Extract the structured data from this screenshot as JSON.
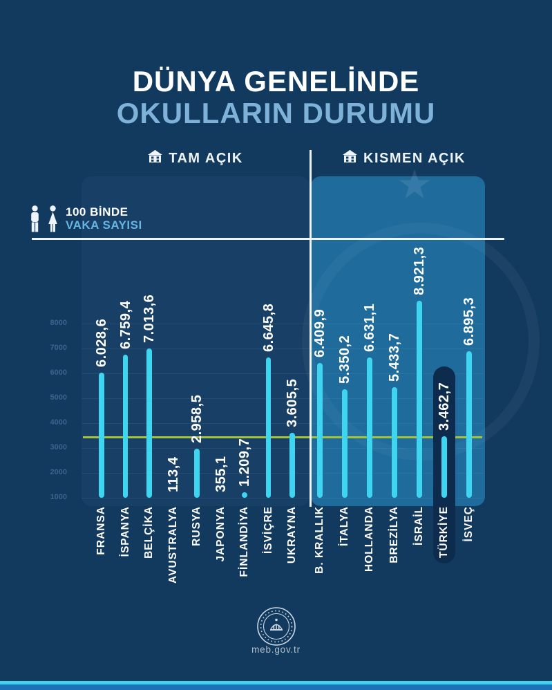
{
  "page": {
    "title_line1": "DÜNYA GENELİNDE",
    "title_line2": "OKULLARIN DURUMU",
    "legend": {
      "line1": "100 BİNDE",
      "line2": "VAKA SAYISI"
    },
    "footer_site": "meb.gov.tr"
  },
  "colors": {
    "background": "#123a5f",
    "title_accent": "#7fb2d9",
    "bar": "#3ed5f1",
    "reference_line": "#a6c43a",
    "highlight_pill": "#0d2b4d",
    "panel_right": "#1f6f9f",
    "white_line": "#eef4f9",
    "bottom_strip_cyan": "#3fd3ee",
    "bottom_strip_blue": "#1d71b6"
  },
  "chart_data": {
    "type": "bar",
    "title": "DÜNYA GENELİNDE OKULLARIN DURUMU",
    "ylabel": "100 BİNDE VAKA SAYISI",
    "ylim": [
      1000,
      9200
    ],
    "yticks": [
      "1000",
      "2000",
      "3000",
      "4000",
      "5000",
      "6000",
      "7000",
      "8000"
    ],
    "grid": true,
    "legend_position": "top-left",
    "reference_line": {
      "value": 3462.7,
      "color": "#a6c43a"
    },
    "groups": [
      {
        "label": "TAM AÇIK",
        "bars": [
          {
            "country": "FRANSA",
            "value": 6028.6,
            "display": "6.028,6"
          },
          {
            "country": "İSPANYA",
            "value": 6759.4,
            "display": "6.759,4"
          },
          {
            "country": "BELÇİKA",
            "value": 7013.6,
            "display": "7.013,6"
          },
          {
            "country": "AVUSTRALYA",
            "value": 113.4,
            "display": "113,4"
          },
          {
            "country": "RUSYA",
            "value": 2958.5,
            "display": "2.958,5"
          },
          {
            "country": "JAPONYA",
            "value": 355.1,
            "display": "355,1"
          },
          {
            "country": "FİNLANDİYA",
            "value": 1209.7,
            "display": "1.209,7"
          },
          {
            "country": "İSVİÇRE",
            "value": 6645.8,
            "display": "6.645,8"
          },
          {
            "country": "UKRAYNA",
            "value": 3605.5,
            "display": "3.605,5"
          }
        ]
      },
      {
        "label": "KISMEN AÇIK",
        "bars": [
          {
            "country": "B. KRALLIK",
            "value": 6409.9,
            "display": "6.409,9"
          },
          {
            "country": "İTALYA",
            "value": 5350.2,
            "display": "5.350,2"
          },
          {
            "country": "HOLLANDA",
            "value": 6631.1,
            "display": "6.631,1"
          },
          {
            "country": "BREZİLYA",
            "value": 5433.7,
            "display": "5.433,7"
          },
          {
            "country": "İSRAİL",
            "value": 8921.3,
            "display": "8.921,3"
          },
          {
            "country": "TÜRKİYE",
            "value": 3462.7,
            "display": "3.462,7",
            "highlighted": true
          },
          {
            "country": "İSVEÇ",
            "value": 6895.3,
            "display": "6.895,3"
          }
        ]
      }
    ]
  }
}
